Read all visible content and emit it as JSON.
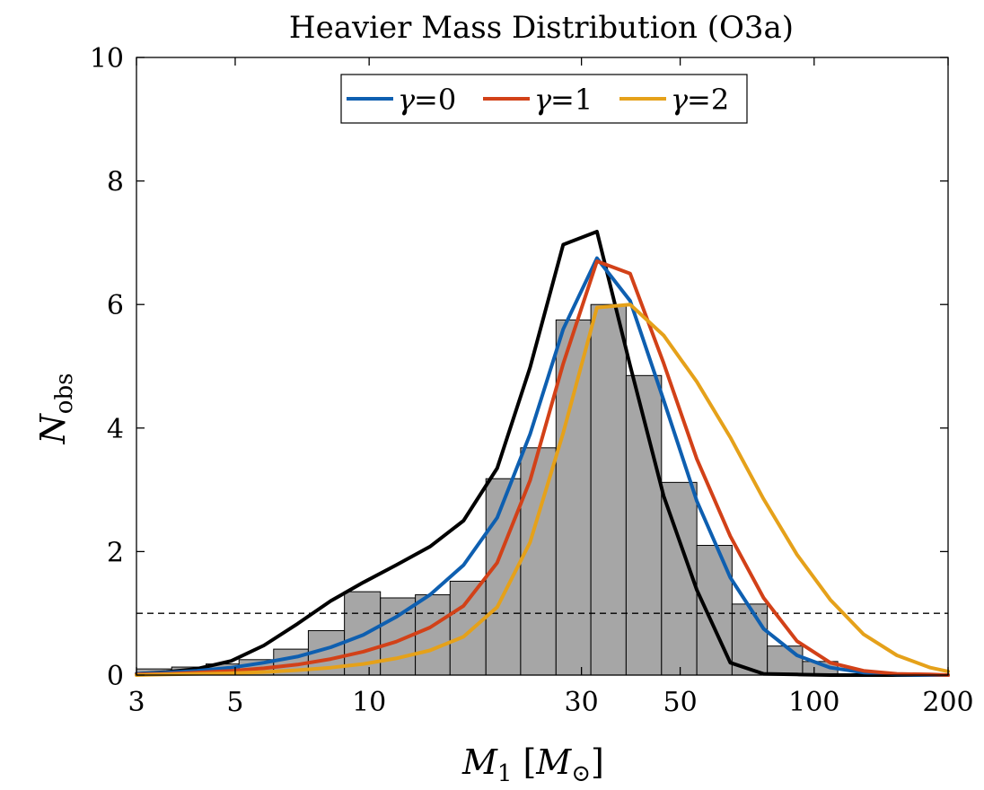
{
  "chart_data": {
    "type": "bar",
    "title": "Heavier Mass Distribution (O3a)",
    "xlabel": "M1 [M⊙]",
    "xlabel_parts": {
      "main": "M",
      "sub": "1",
      "bracket_open": "[",
      "unit_main": "M",
      "unit_sub": "⊙",
      "bracket_close": "]"
    },
    "ylabel": "Nobs",
    "ylabel_parts": {
      "main": "N",
      "sub": "obs"
    },
    "x_scale": "log",
    "xlim": [
      3,
      200
    ],
    "ylim": [
      0,
      10
    ],
    "x_ticks": [
      3,
      5,
      10,
      30,
      50,
      100,
      200
    ],
    "x_tick_labels": [
      "3",
      "5",
      "10",
      "30",
      "50",
      "100",
      "200"
    ],
    "y_ticks": [
      0,
      2,
      4,
      6,
      8,
      10
    ],
    "y_tick_labels": [
      "0",
      "2",
      "4",
      "6",
      "8",
      "10"
    ],
    "reference_line": {
      "y": 1,
      "style": "dashed"
    },
    "legend": {
      "position": "top-center",
      "entries": [
        {
          "symbol": "γ",
          "text": "=0",
          "color": "#0e5fb0"
        },
        {
          "symbol": "γ",
          "text": "=1",
          "color": "#d24118"
        },
        {
          "symbol": "γ",
          "text": "=2",
          "color": "#e5a11a"
        }
      ]
    },
    "histogram": {
      "name": "observed",
      "color": "#a6a6a6",
      "edge_color": "#000000",
      "bins": [
        {
          "lo": 3.0,
          "hi": 3.6,
          "value": 0.1
        },
        {
          "lo": 3.6,
          "hi": 4.3,
          "value": 0.13
        },
        {
          "lo": 4.3,
          "hi": 5.1,
          "value": 0.18
        },
        {
          "lo": 5.1,
          "hi": 6.1,
          "value": 0.25
        },
        {
          "lo": 6.1,
          "hi": 7.3,
          "value": 0.42
        },
        {
          "lo": 7.3,
          "hi": 8.8,
          "value": 0.72
        },
        {
          "lo": 8.8,
          "hi": 10.6,
          "value": 1.35
        },
        {
          "lo": 10.6,
          "hi": 12.7,
          "value": 1.25
        },
        {
          "lo": 12.7,
          "hi": 15.2,
          "value": 1.3
        },
        {
          "lo": 15.2,
          "hi": 18.3,
          "value": 1.52
        },
        {
          "lo": 18.3,
          "hi": 21.9,
          "value": 3.18
        },
        {
          "lo": 21.9,
          "hi": 26.3,
          "value": 3.68
        },
        {
          "lo": 26.3,
          "hi": 31.5,
          "value": 5.75
        },
        {
          "lo": 31.5,
          "hi": 37.8,
          "value": 6.0
        },
        {
          "lo": 37.8,
          "hi": 45.4,
          "value": 4.85
        },
        {
          "lo": 45.4,
          "hi": 54.5,
          "value": 3.12
        },
        {
          "lo": 54.5,
          "hi": 65.4,
          "value": 2.1
        },
        {
          "lo": 65.4,
          "hi": 78.5,
          "value": 1.15
        },
        {
          "lo": 78.5,
          "hi": 94.2,
          "value": 0.47
        },
        {
          "lo": 94.2,
          "hi": 113.0,
          "value": 0.22
        }
      ]
    },
    "series": [
      {
        "name": "model",
        "color": "#000000",
        "x": [
          3.0,
          3.5,
          4.1,
          4.9,
          5.8,
          6.9,
          8.2,
          9.7,
          11.5,
          13.7,
          16.3,
          19.4,
          23.0,
          27.3,
          32.5,
          38.6,
          45.9,
          54.5,
          64.8,
          77.0,
          91.5,
          108.7,
          129.2,
          153.5,
          182.4,
          200.0
        ],
        "y": [
          0.02,
          0.05,
          0.1,
          0.23,
          0.48,
          0.83,
          1.2,
          1.5,
          1.78,
          2.08,
          2.5,
          3.35,
          4.98,
          6.97,
          7.18,
          5.01,
          2.9,
          1.38,
          0.2,
          0.02,
          0.01,
          0.0,
          0.0,
          0.0,
          0.0,
          0.0
        ]
      },
      {
        "name": "γ=0",
        "color": "#0e5fb0",
        "x": [
          3.0,
          3.5,
          4.1,
          4.9,
          5.8,
          6.9,
          8.2,
          9.7,
          11.5,
          13.7,
          16.3,
          19.4,
          23.0,
          27.3,
          32.5,
          38.6,
          45.9,
          54.5,
          64.8,
          77.0,
          91.5,
          108.7,
          129.2,
          153.5,
          182.4,
          200.0
        ],
        "y": [
          0.02,
          0.04,
          0.07,
          0.12,
          0.2,
          0.3,
          0.45,
          0.65,
          0.94,
          1.3,
          1.78,
          2.55,
          3.9,
          5.6,
          6.75,
          6.06,
          4.45,
          2.82,
          1.58,
          0.75,
          0.32,
          0.12,
          0.04,
          0.01,
          0.0,
          0.0
        ]
      },
      {
        "name": "γ=1",
        "color": "#d24118",
        "x": [
          3.0,
          3.5,
          4.1,
          4.9,
          5.8,
          6.9,
          8.2,
          9.7,
          11.5,
          13.7,
          16.3,
          19.4,
          23.0,
          27.3,
          32.5,
          38.6,
          45.9,
          54.5,
          64.8,
          77.0,
          91.5,
          108.7,
          129.2,
          153.5,
          182.4,
          200.0
        ],
        "y": [
          0.01,
          0.02,
          0.04,
          0.07,
          0.11,
          0.17,
          0.26,
          0.38,
          0.54,
          0.77,
          1.12,
          1.82,
          3.15,
          5.04,
          6.7,
          6.5,
          5.05,
          3.5,
          2.25,
          1.25,
          0.55,
          0.2,
          0.07,
          0.02,
          0.01,
          0.0
        ]
      },
      {
        "name": "γ=2",
        "color": "#e5a11a",
        "x": [
          3.0,
          3.5,
          4.1,
          4.9,
          5.8,
          6.9,
          8.2,
          9.7,
          11.5,
          13.7,
          16.3,
          19.4,
          23.0,
          27.3,
          32.5,
          38.6,
          45.9,
          54.5,
          64.8,
          77.0,
          91.5,
          108.7,
          129.2,
          153.5,
          182.4,
          200.0
        ],
        "y": [
          0.0,
          0.01,
          0.02,
          0.03,
          0.05,
          0.08,
          0.12,
          0.18,
          0.27,
          0.4,
          0.62,
          1.1,
          2.15,
          3.92,
          5.95,
          6.0,
          5.5,
          4.75,
          3.85,
          2.85,
          1.95,
          1.22,
          0.66,
          0.32,
          0.12,
          0.06
        ]
      }
    ]
  }
}
